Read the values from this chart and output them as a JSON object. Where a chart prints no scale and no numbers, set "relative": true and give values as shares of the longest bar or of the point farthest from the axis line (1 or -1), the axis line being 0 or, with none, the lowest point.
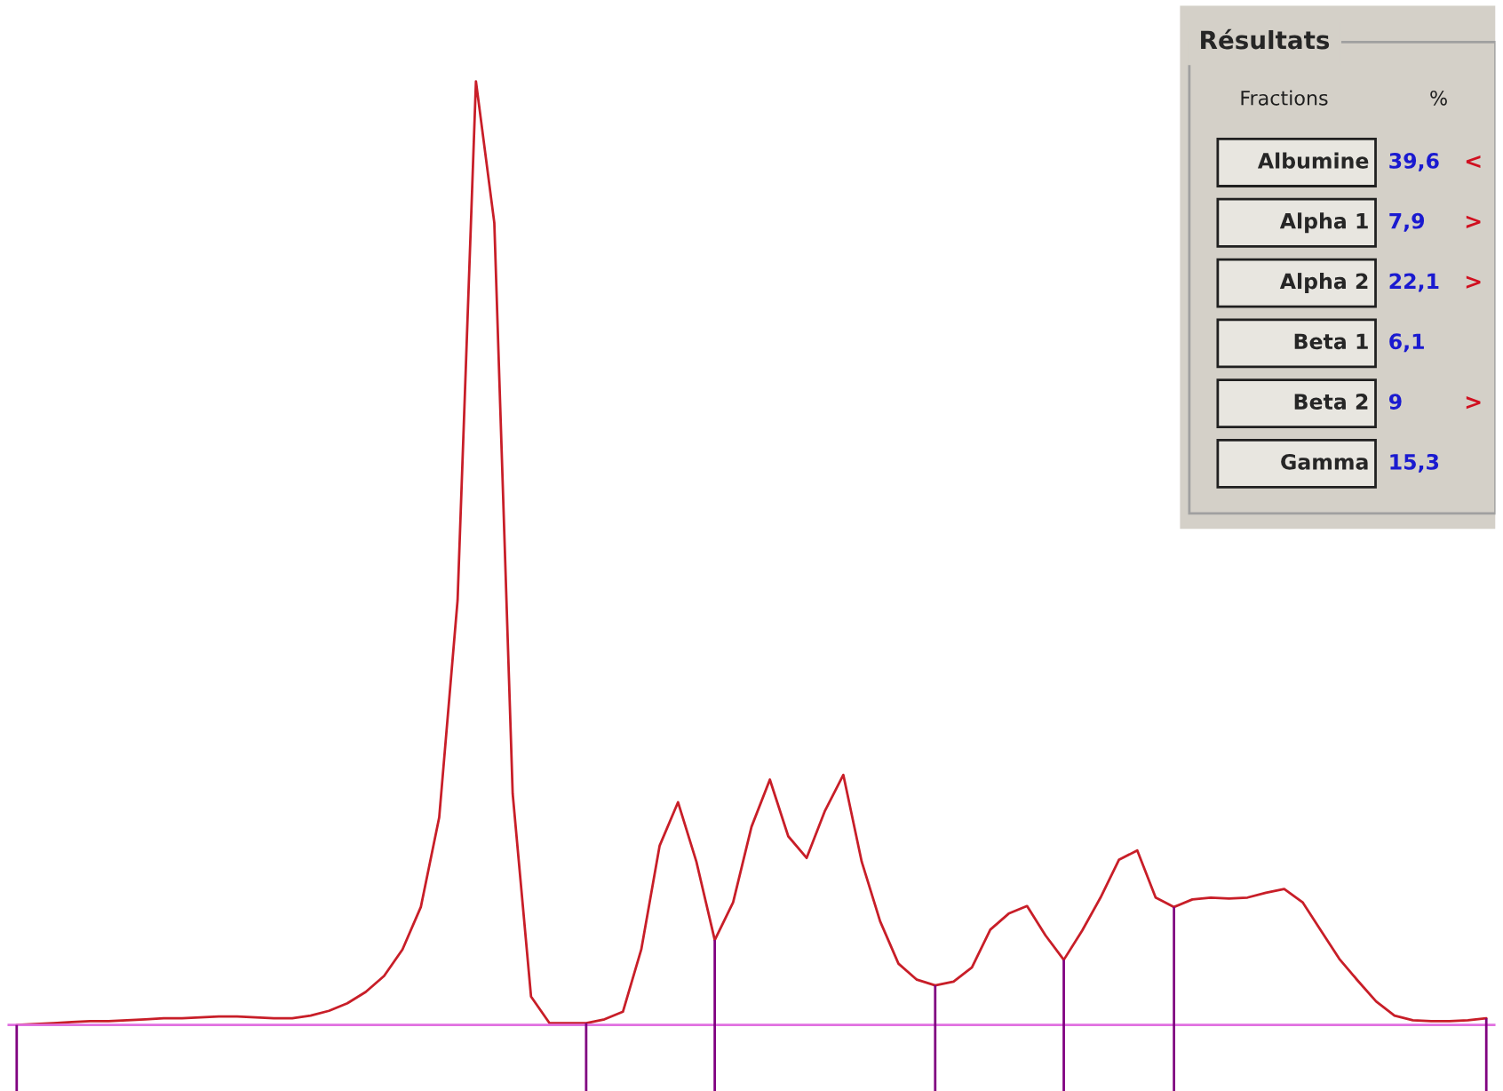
{
  "chart_data": [
    {
      "type": "line",
      "relative": true,
      "categories": [
        null,
        null,
        null,
        null,
        null,
        null,
        null,
        null,
        null,
        null,
        null,
        null,
        null,
        null,
        null,
        null,
        null,
        null,
        null,
        null,
        null,
        null,
        null,
        null,
        null,
        null,
        null,
        null,
        null,
        null,
        null,
        null,
        null,
        null,
        null,
        null,
        null,
        null,
        null,
        null,
        null,
        null,
        null,
        null,
        null,
        null,
        null,
        null,
        null,
        null,
        null,
        null,
        null,
        null,
        null,
        null,
        null,
        null,
        null,
        null,
        null,
        null,
        null,
        null,
        null,
        null,
        null,
        null,
        null,
        null,
        null,
        null,
        null,
        null,
        null,
        null,
        null,
        null,
        null,
        null,
        null
      ],
      "series": [
        {
          "color": "#c81e28",
          "values": [
            0,
            0.001,
            0.002,
            0.003,
            0.004,
            0.004,
            0.005,
            0.006,
            0.007,
            0.007,
            0.008,
            0.009,
            0.009,
            0.008,
            0.007,
            0.007,
            0.01,
            0.015,
            0.023,
            0.035,
            0.052,
            0.08,
            0.125,
            0.22,
            0.45,
            1.0,
            0.85,
            0.245,
            0.03,
            0.002,
            0.002,
            0.002,
            0.006,
            0.014,
            0.08,
            0.19,
            0.236,
            0.173,
            0.09,
            0.13,
            0.21,
            0.26,
            0.2,
            0.177,
            0.227,
            0.265,
            0.173,
            0.11,
            0.065,
            0.048,
            0.042,
            0.046,
            0.061,
            0.101,
            0.118,
            0.126,
            0.095,
            0.069,
            0.1,
            0.135,
            0.175,
            0.185,
            0.135,
            0.125,
            0.133,
            0.135,
            0.134,
            0.135,
            0.14,
            0.144,
            0.13,
            0.1,
            0.07,
            0.047,
            0.025,
            0.01,
            0.005,
            0.004,
            0.004,
            0.005,
            0.007
          ]
        }
      ],
      "grid": false
    },
    {
      "type": "other",
      "title": "Résultats",
      "categories": [
        "Albumine",
        "Alpha 1",
        "Alpha 2",
        "Beta 1",
        "Beta 2",
        "Gamma"
      ],
      "value_labels": [
        "39,6",
        "7,9",
        "22,1",
        "6,1",
        "9",
        "15,3"
      ],
      "annotations": [
        "Fractions",
        "%",
        {
          "text": "<",
          "y": "Albumine"
        },
        {
          "text": ">",
          "y": "Alpha 1"
        },
        {
          "text": ">",
          "y": "Alpha 2"
        },
        {
          "text": ">",
          "y": "Beta 2"
        }
      ]
    }
  ]
}
